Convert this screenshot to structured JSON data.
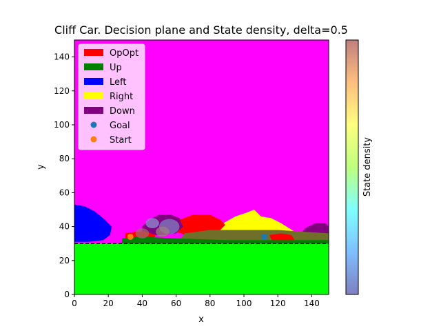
{
  "chart_data": {
    "type": "heatmap",
    "title": "Cliff Car. Decision plane and State density, delta=0.5",
    "xlabel": "x",
    "ylabel": "y",
    "xlim": [
      0,
      150
    ],
    "ylim": [
      0,
      150
    ],
    "xticks": [
      "0",
      "20",
      "40",
      "60",
      "80",
      "100",
      "120",
      "140"
    ],
    "yticks": [
      "0",
      "20",
      "40",
      "60",
      "80",
      "100",
      "120",
      "140"
    ],
    "background_region": {
      "color": "#ff00ff"
    },
    "cliff_region": {
      "color": "#00ff00",
      "y_range": [
        0,
        30
      ]
    },
    "cliff_line_y": 30,
    "regions": [
      {
        "name": "Left",
        "color": "#0000ff",
        "polygon": [
          [
            0,
            53
          ],
          [
            6,
            52
          ],
          [
            12,
            49
          ],
          [
            18,
            44
          ],
          [
            22,
            40
          ],
          [
            21,
            35
          ],
          [
            17,
            32
          ],
          [
            8,
            31
          ],
          [
            0,
            31
          ]
        ]
      },
      {
        "name": "Right",
        "color": "#ffff00",
        "polygon": [
          [
            86,
            41
          ],
          [
            95,
            46
          ],
          [
            101,
            48
          ],
          [
            106,
            50
          ],
          [
            110,
            46
          ],
          [
            116,
            45
          ],
          [
            122,
            42
          ],
          [
            130,
            37
          ],
          [
            132,
            34
          ],
          [
            110,
            34
          ],
          [
            90,
            34
          ],
          [
            86,
            36
          ]
        ]
      },
      {
        "name": "OpOpt",
        "color": "#ff0000",
        "polygon": [
          [
            62,
            44
          ],
          [
            70,
            47
          ],
          [
            80,
            47
          ],
          [
            86,
            44
          ],
          [
            89,
            41
          ],
          [
            86,
            38
          ],
          [
            78,
            35
          ],
          [
            66,
            35
          ],
          [
            60,
            37
          ]
        ]
      },
      {
        "name": "Down",
        "color": "#800080",
        "polygon": [
          [
            40,
            40
          ],
          [
            44,
            44
          ],
          [
            50,
            47
          ],
          [
            57,
            47
          ],
          [
            62,
            45
          ],
          [
            64,
            40
          ],
          [
            60,
            36
          ],
          [
            52,
            35
          ],
          [
            44,
            35
          ],
          [
            40,
            37
          ]
        ]
      },
      {
        "name": "Down",
        "color": "#800080",
        "polygon": [
          [
            136,
            39
          ],
          [
            142,
            42
          ],
          [
            148,
            42
          ],
          [
            150,
            40
          ],
          [
            150,
            36
          ],
          [
            140,
            35
          ],
          [
            134,
            36
          ]
        ]
      },
      {
        "name": "Down",
        "color": "#6f6f2a",
        "polygon": [
          [
            65,
            36
          ],
          [
            80,
            38
          ],
          [
            100,
            38
          ],
          [
            120,
            38
          ],
          [
            135,
            37
          ],
          [
            150,
            36
          ],
          [
            150,
            31
          ],
          [
            130,
            31
          ],
          [
            100,
            31
          ],
          [
            70,
            31
          ],
          [
            62,
            32
          ]
        ]
      },
      {
        "name": "OpOpt",
        "color": "#ff0000",
        "polygon": [
          [
            115,
            35
          ],
          [
            122,
            36
          ],
          [
            128,
            35
          ],
          [
            130,
            32
          ],
          [
            124,
            31
          ],
          [
            117,
            31
          ]
        ]
      },
      {
        "name": "OpOpt",
        "color": "#ff0000",
        "polygon": [
          [
            30,
            36
          ],
          [
            36,
            37
          ],
          [
            42,
            37
          ],
          [
            48,
            35
          ],
          [
            46,
            32
          ],
          [
            36,
            31
          ],
          [
            30,
            32
          ]
        ]
      },
      {
        "name": "Up",
        "color": "#008000",
        "polygon": [
          [
            28,
            33
          ],
          [
            40,
            34
          ],
          [
            60,
            33
          ],
          [
            90,
            32
          ],
          [
            120,
            32
          ],
          [
            150,
            32
          ],
          [
            150,
            30
          ],
          [
            28,
            30
          ]
        ]
      }
    ],
    "density_blobs": [
      {
        "x": 56,
        "y": 40,
        "r": 6,
        "color": "#7f7fbf"
      },
      {
        "x": 46,
        "y": 42,
        "r": 4,
        "color": "#8f8fcf"
      },
      {
        "x": 40,
        "y": 36,
        "r": 4,
        "color": "#a06a6a"
      },
      {
        "x": 52,
        "y": 37,
        "r": 4,
        "color": "#9f7f7f"
      }
    ],
    "legend": {
      "placement": "top-left",
      "entries": [
        {
          "label": "OpOpt",
          "marker": "patch",
          "color": "#ff0000"
        },
        {
          "label": "Up",
          "marker": "patch",
          "color": "#008000"
        },
        {
          "label": "Left",
          "marker": "patch",
          "color": "#0000ff"
        },
        {
          "label": "Right",
          "marker": "patch",
          "color": "#ffff00"
        },
        {
          "label": "Down",
          "marker": "patch",
          "color": "#800080"
        },
        {
          "label": "Goal",
          "marker": "dot",
          "color": "#1f77b4"
        },
        {
          "label": "Start",
          "marker": "dot",
          "color": "#ff7f0e"
        }
      ]
    },
    "points": [
      {
        "name": "Goal",
        "x": 112,
        "y": 34,
        "color": "#1f77b4"
      },
      {
        "name": "Start",
        "x": 33,
        "y": 34,
        "color": "#ff7f0e"
      }
    ],
    "colorbar": {
      "label": "State density",
      "colormap": [
        "#7f7fbf",
        "#7fbfff",
        "#7fffff",
        "#bfff7f",
        "#ffff7f",
        "#ffbf7f",
        "#c07f7f"
      ]
    }
  }
}
